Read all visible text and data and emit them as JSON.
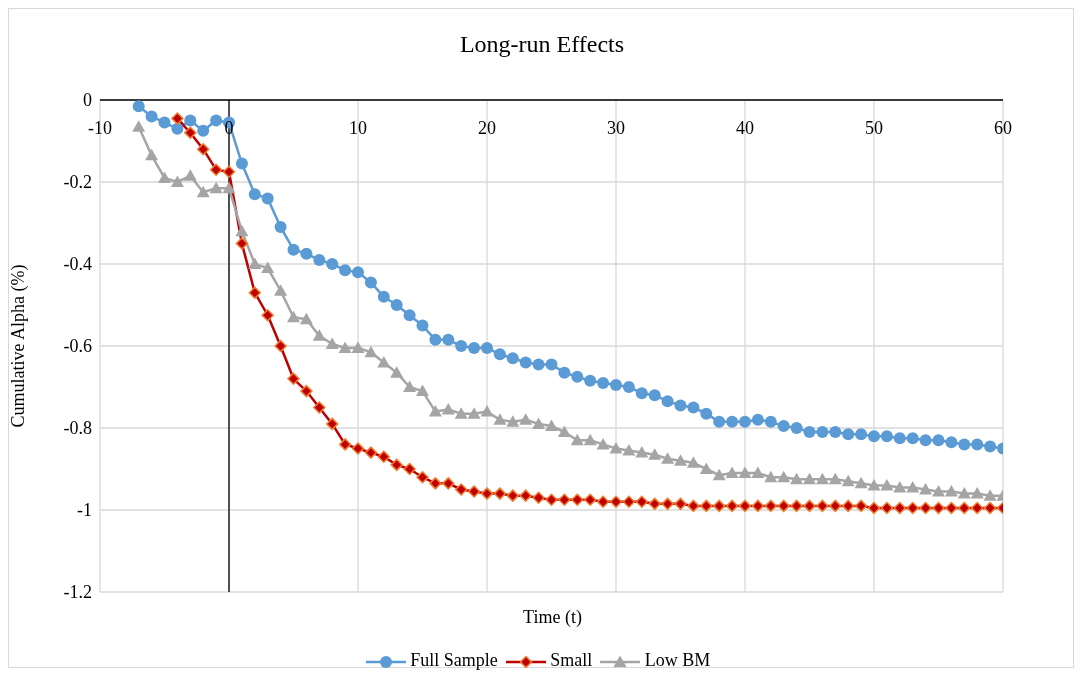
{
  "chart_data": {
    "type": "line",
    "title": "Long-run Effects",
    "xlabel": "Time (t)",
    "ylabel": "Cumulative  Alpha (%)",
    "x": [
      -7,
      -6,
      -5,
      -4,
      -3,
      -2,
      -1,
      0,
      1,
      2,
      3,
      4,
      5,
      6,
      7,
      8,
      9,
      10,
      11,
      12,
      13,
      14,
      15,
      16,
      17,
      18,
      19,
      20,
      21,
      22,
      23,
      24,
      25,
      26,
      27,
      28,
      29,
      30,
      31,
      32,
      33,
      34,
      35,
      36,
      37,
      38,
      39,
      40,
      41,
      42,
      43,
      44,
      45,
      46,
      47,
      48,
      49,
      50,
      51,
      52,
      53,
      54,
      55,
      56,
      57,
      58,
      59,
      60
    ],
    "series": [
      {
        "name": "Full Sample",
        "color": "#5b9bd5",
        "marker": "circle",
        "values": [
          -0.015,
          -0.04,
          -0.055,
          -0.07,
          -0.05,
          -0.075,
          -0.05,
          -0.055,
          -0.155,
          -0.23,
          -0.24,
          -0.31,
          -0.365,
          -0.375,
          -0.39,
          -0.4,
          -0.415,
          -0.42,
          -0.445,
          -0.48,
          -0.5,
          -0.525,
          -0.55,
          -0.585,
          -0.585,
          -0.6,
          -0.605,
          -0.605,
          -0.62,
          -0.63,
          -0.64,
          -0.645,
          -0.645,
          -0.665,
          -0.675,
          -0.685,
          -0.69,
          -0.695,
          -0.7,
          -0.715,
          -0.72,
          -0.735,
          -0.745,
          -0.75,
          -0.765,
          -0.785,
          -0.785,
          -0.785,
          -0.78,
          -0.785,
          -0.795,
          -0.8,
          -0.81,
          -0.81,
          -0.81,
          -0.815,
          -0.815,
          -0.82,
          -0.82,
          -0.825,
          -0.825,
          -0.83,
          -0.83,
          -0.835,
          -0.84,
          -0.84,
          -0.845,
          -0.85
        ]
      },
      {
        "name": "Small",
        "color": "#c00000",
        "marker": "diamond",
        "values": [
          null,
          null,
          null,
          -0.045,
          -0.08,
          -0.12,
          -0.17,
          -0.175,
          -0.35,
          -0.47,
          -0.525,
          -0.6,
          -0.68,
          -0.71,
          -0.75,
          -0.79,
          -0.84,
          -0.85,
          -0.86,
          -0.87,
          -0.89,
          -0.9,
          -0.92,
          -0.935,
          -0.935,
          -0.95,
          -0.955,
          -0.96,
          -0.96,
          -0.965,
          -0.965,
          -0.97,
          -0.975,
          -0.975,
          -0.975,
          -0.975,
          -0.98,
          -0.98,
          -0.98,
          -0.98,
          -0.985,
          -0.985,
          -0.985,
          -0.99,
          -0.99,
          -0.99,
          -0.99,
          -0.99,
          -0.99,
          -0.99,
          -0.99,
          -0.99,
          -0.99,
          -0.99,
          -0.99,
          -0.99,
          -0.99,
          -0.995,
          -0.995,
          -0.995,
          -0.995,
          -0.995,
          -0.995,
          -0.995,
          -0.995,
          -0.995,
          -0.995,
          -0.995
        ]
      },
      {
        "name": "Low BM",
        "color": "#a5a5a5",
        "marker": "triangle",
        "values": [
          -0.065,
          -0.135,
          -0.19,
          -0.2,
          -0.185,
          -0.225,
          -0.215,
          -0.215,
          -0.32,
          -0.4,
          -0.41,
          -0.465,
          -0.53,
          -0.535,
          -0.575,
          -0.595,
          -0.605,
          -0.605,
          -0.615,
          -0.64,
          -0.665,
          -0.7,
          -0.71,
          -0.76,
          -0.755,
          -0.765,
          -0.765,
          -0.76,
          -0.78,
          -0.785,
          -0.78,
          -0.79,
          -0.795,
          -0.81,
          -0.83,
          -0.83,
          -0.84,
          -0.85,
          -0.855,
          -0.86,
          -0.865,
          -0.875,
          -0.88,
          -0.885,
          -0.9,
          -0.915,
          -0.91,
          -0.91,
          -0.91,
          -0.92,
          -0.92,
          -0.925,
          -0.925,
          -0.925,
          -0.925,
          -0.93,
          -0.935,
          -0.94,
          -0.94,
          -0.945,
          -0.945,
          -0.95,
          -0.955,
          -0.955,
          -0.96,
          -0.96,
          -0.965,
          -0.965
        ]
      }
    ],
    "xlim": [
      -10,
      60
    ],
    "xticks": [
      -10,
      0,
      10,
      20,
      30,
      40,
      50,
      60
    ],
    "ylim": [
      -1.2,
      0
    ],
    "yticks": [
      -1.2,
      -1,
      -0.8,
      -0.6,
      -0.4,
      -0.2,
      0
    ],
    "grid": true,
    "legend": "bottom",
    "line_style": "solid"
  }
}
